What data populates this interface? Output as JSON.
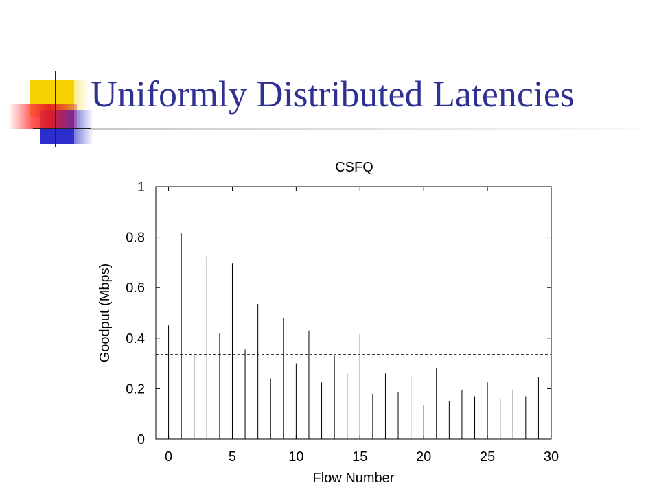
{
  "slide": {
    "title": "Uniformly Distributed Latencies",
    "accent_colors": {
      "title": "#2e3192",
      "yellow": "#f5d200",
      "blue": "#2e2ecc",
      "red": "#e83030"
    }
  },
  "chart_data": {
    "type": "bar",
    "title": "CSFQ",
    "xlabel": "Flow Number",
    "ylabel": "Goodput (Mbps)",
    "xlim": [
      -1,
      30
    ],
    "ylim": [
      0,
      1
    ],
    "xticks": [
      0,
      5,
      10,
      15,
      20,
      25,
      30
    ],
    "yticks": [
      0,
      0.2,
      0.4,
      0.6,
      0.8,
      1
    ],
    "x": [
      0,
      1,
      2,
      3,
      4,
      5,
      6,
      7,
      8,
      9,
      10,
      11,
      12,
      13,
      14,
      15,
      16,
      17,
      18,
      19,
      20,
      21,
      22,
      23,
      24,
      25,
      26,
      27,
      28,
      29
    ],
    "values": [
      0.45,
      0.815,
      0.33,
      0.725,
      0.42,
      0.695,
      0.355,
      0.535,
      0.24,
      0.48,
      0.3,
      0.43,
      0.225,
      0.33,
      0.26,
      0.415,
      0.18,
      0.26,
      0.185,
      0.25,
      0.135,
      0.28,
      0.15,
      0.195,
      0.17,
      0.225,
      0.16,
      0.195,
      0.17,
      0.245
    ],
    "reference_line": {
      "y": 0.335,
      "style": "dashed"
    },
    "grid": false,
    "legend": "none"
  }
}
